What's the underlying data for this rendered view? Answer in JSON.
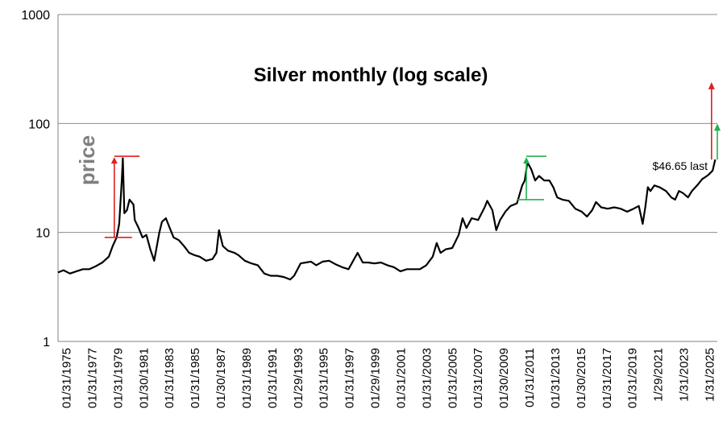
{
  "chart_data": {
    "type": "line",
    "title": "Silver monthly (log scale)",
    "ylabel": "price",
    "xlabel": "",
    "yscale": "log",
    "ylim": [
      1,
      1000
    ],
    "grid": true,
    "y_ticks": [
      "1",
      "10",
      "100",
      "1000"
    ],
    "x_ticks": [
      "01/31/1975",
      "01/31/1977",
      "01/31/1979",
      "01/30/1981",
      "01/31/1983",
      "01/31/1985",
      "01/30/1987",
      "01/31/1989",
      "01/31/1991",
      "01/29/1993",
      "01/31/1995",
      "01/31/1997",
      "01/29/1999",
      "01/31/2001",
      "01/31/2003",
      "01/31/2005",
      "01/31/2007",
      "01/30/2009",
      "01/31/2011",
      "01/31/2013",
      "01/30/2015",
      "01/31/2017",
      "01/31/2019",
      "1/29/2021",
      "1/31/2023",
      "1/31/2025"
    ],
    "series": [
      {
        "color": "#000000",
        "x": [
          1975.08,
          1975.5,
          1976.0,
          1976.5,
          1977.0,
          1977.5,
          1978.0,
          1978.5,
          1979.0,
          1979.3,
          1979.6,
          1979.8,
          1980.0,
          1980.08,
          1980.2,
          1980.4,
          1980.6,
          1980.9,
          1981.0,
          1981.3,
          1981.6,
          1981.9,
          1982.2,
          1982.5,
          1982.9,
          1983.1,
          1983.4,
          1983.7,
          1984.0,
          1984.4,
          1984.8,
          1985.2,
          1985.6,
          1986.0,
          1986.5,
          1987.0,
          1987.3,
          1987.5,
          1987.8,
          1988.2,
          1988.7,
          1989.0,
          1989.5,
          1990.0,
          1990.5,
          1991.0,
          1991.5,
          1992.0,
          1992.5,
          1993.0,
          1993.3,
          1993.8,
          1994.2,
          1994.6,
          1995.0,
          1995.5,
          1996.0,
          1996.5,
          1997.0,
          1997.5,
          1998.0,
          1998.2,
          1998.6,
          1999.0,
          1999.5,
          2000.0,
          2000.5,
          2001.0,
          2001.5,
          2002.0,
          2002.5,
          2003.0,
          2003.5,
          2004.0,
          2004.3,
          2004.6,
          2005.0,
          2005.5,
          2006.0,
          2006.3,
          2006.6,
          2007.0,
          2007.5,
          2008.0,
          2008.2,
          2008.6,
          2008.9,
          2009.2,
          2009.6,
          2010.0,
          2010.5,
          2010.9,
          2011.1,
          2011.3,
          2011.6,
          2011.9,
          2012.2,
          2012.6,
          2013.0,
          2013.3,
          2013.6,
          2014.0,
          2014.5,
          2015.0,
          2015.5,
          2015.9,
          2016.3,
          2016.6,
          2017.0,
          2017.5,
          2018.0,
          2018.5,
          2019.0,
          2019.5,
          2019.9,
          2020.2,
          2020.4,
          2020.6,
          2020.8,
          2021.1,
          2021.5,
          2022.0,
          2022.4,
          2022.7,
          2023.0,
          2023.3,
          2023.7,
          2024.0,
          2024.4,
          2024.8,
          2025.0,
          2025.3,
          2025.6,
          2025.8
        ],
        "values": [
          4.3,
          4.5,
          4.2,
          4.4,
          4.6,
          4.6,
          4.9,
          5.3,
          6.0,
          7.5,
          9.0,
          12.0,
          30.0,
          48.0,
          15.0,
          16.0,
          20.0,
          18.0,
          13.0,
          11.0,
          9.0,
          9.5,
          7.0,
          5.5,
          10.0,
          12.5,
          13.5,
          11.0,
          9.0,
          8.5,
          7.5,
          6.5,
          6.2,
          6.0,
          5.5,
          5.7,
          6.5,
          10.5,
          7.5,
          6.8,
          6.5,
          6.2,
          5.5,
          5.2,
          5.0,
          4.2,
          4.0,
          4.0,
          3.9,
          3.7,
          4.0,
          5.2,
          5.3,
          5.4,
          5.0,
          5.4,
          5.5,
          5.1,
          4.8,
          4.6,
          5.9,
          6.5,
          5.3,
          5.3,
          5.2,
          5.3,
          5.0,
          4.8,
          4.4,
          4.6,
          4.6,
          4.6,
          5.0,
          6.0,
          8.0,
          6.5,
          7.0,
          7.2,
          9.5,
          13.5,
          11.0,
          13.5,
          13.0,
          17.0,
          19.5,
          16.0,
          10.5,
          13.0,
          15.5,
          17.5,
          18.5,
          27.0,
          30.0,
          44.0,
          38.0,
          30.0,
          33.0,
          30.0,
          30.0,
          26.0,
          21.0,
          20.0,
          19.5,
          16.5,
          15.5,
          14.0,
          16.0,
          19.0,
          17.0,
          16.5,
          17.0,
          16.5,
          15.5,
          16.5,
          17.5,
          12.0,
          17.0,
          26.0,
          24.0,
          27.0,
          26.0,
          24.0,
          21.0,
          20.0,
          24.0,
          23.0,
          21.0,
          24.0,
          27.0,
          31.0,
          32.0,
          34.0,
          37.0,
          46.65
        ]
      }
    ],
    "annotations": [
      {
        "text": "$46.65 last"
      }
    ],
    "ranges": [
      {
        "color": "#e02020",
        "x0": 1978.8,
        "x1": 1981.0,
        "lo": 9.0,
        "hi": 50.0
      },
      {
        "color": "#22b050",
        "x0": 2010.6,
        "x1": 2012.4,
        "lo": 20.0,
        "hi": 50.0
      }
    ],
    "arrows": [
      {
        "color": "#e02020",
        "x": 2025.7,
        "from": 46.65,
        "to": 240.0
      },
      {
        "color": "#22b050",
        "x": 2025.96,
        "from": 46.65,
        "to": 100.0
      }
    ]
  }
}
